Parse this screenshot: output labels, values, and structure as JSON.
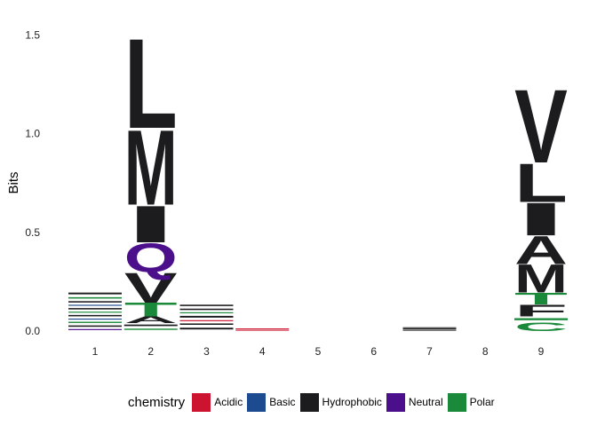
{
  "chart_data": {
    "type": "sequence-logo",
    "ylabel": "Bits",
    "xlabel": "",
    "ylim": [
      0,
      1.6
    ],
    "yticks": [
      "0.0",
      "0.5",
      "1.0",
      "1.5"
    ],
    "ytick_values": [
      0,
      0.5,
      1.0,
      1.5
    ],
    "positions": [
      "1",
      "2",
      "3",
      "4",
      "5",
      "6",
      "7",
      "8",
      "9"
    ],
    "grid": false,
    "legend_placement": "bottom",
    "legend_title": "chemistry",
    "colors": {
      "Acidic": "#cc1430",
      "Basic": "#1c4b8f",
      "Hydrophobic": "#1c1c1e",
      "Neutral": "#4b0f8c",
      "Polar": "#1a8a3a"
    },
    "legend": [
      {
        "label": "Acidic",
        "color": "#cc1430"
      },
      {
        "label": "Basic",
        "color": "#1c4b8f"
      },
      {
        "label": "Hydrophobic",
        "color": "#1c1c1e"
      },
      {
        "label": "Neutral",
        "color": "#4b0f8c"
      },
      {
        "label": "Polar",
        "color": "#1a8a3a"
      }
    ],
    "stacks": [
      {
        "position": 1,
        "letters": [
          {
            "letter": "",
            "chem": "Neutral",
            "bits": 0.015
          },
          {
            "letter": "",
            "chem": "Hydrophobic",
            "bits": 0.02
          },
          {
            "letter": "",
            "chem": "Polar",
            "bits": 0.018
          },
          {
            "letter": "",
            "chem": "Basic",
            "bits": 0.015
          },
          {
            "letter": "",
            "chem": "Hydrophobic",
            "bits": 0.02
          },
          {
            "letter": "",
            "chem": "Polar",
            "bits": 0.015
          },
          {
            "letter": "",
            "chem": "Hydrophobic",
            "bits": 0.02
          },
          {
            "letter": "",
            "chem": "Basic",
            "bits": 0.015
          },
          {
            "letter": "",
            "chem": "Hydrophobic",
            "bits": 0.02
          },
          {
            "letter": "",
            "chem": "Polar",
            "bits": 0.02
          },
          {
            "letter": "",
            "chem": "Hydrophobic",
            "bits": 0.025
          }
        ]
      },
      {
        "position": 2,
        "letters": [
          {
            "letter": "",
            "chem": "Polar",
            "bits": 0.018
          },
          {
            "letter": "",
            "chem": "Hydrophobic",
            "bits": 0.022
          },
          {
            "letter": "A",
            "chem": "Hydrophobic",
            "bits": 0.035
          },
          {
            "letter": "T",
            "chem": "Polar",
            "bits": 0.07
          },
          {
            "letter": "V",
            "chem": "Hydrophobic",
            "bits": 0.155
          },
          {
            "letter": "Q",
            "chem": "Neutral",
            "bits": 0.15
          },
          {
            "letter": "I",
            "chem": "Hydrophobic",
            "bits": 0.19
          },
          {
            "letter": "M",
            "chem": "Hydrophobic",
            "bits": 0.39
          },
          {
            "letter": "L",
            "chem": "Hydrophobic",
            "bits": 0.465
          }
        ]
      },
      {
        "position": 3,
        "letters": [
          {
            "letter": "",
            "chem": "Hydrophobic",
            "bits": 0.025
          },
          {
            "letter": "",
            "chem": "Hydrophobic",
            "bits": 0.02
          },
          {
            "letter": "",
            "chem": "Acidic",
            "bits": 0.015
          },
          {
            "letter": "",
            "chem": "Hydrophobic",
            "bits": 0.025
          },
          {
            "letter": "",
            "chem": "Polar",
            "bits": 0.015
          },
          {
            "letter": "",
            "chem": "Hydrophobic",
            "bits": 0.02
          },
          {
            "letter": "W",
            "chem": "Hydrophobic",
            "bits": 0.02
          }
        ]
      },
      {
        "position": 4,
        "letters": [
          {
            "letter": "",
            "chem": "Acidic",
            "bits": 0.008
          },
          {
            "letter": "",
            "chem": "Acidic",
            "bits": 0.006
          }
        ]
      },
      {
        "position": 5,
        "letters": []
      },
      {
        "position": 6,
        "letters": []
      },
      {
        "position": 7,
        "letters": [
          {
            "letter": "",
            "chem": "Hydrophobic",
            "bits": 0.008
          },
          {
            "letter": "",
            "chem": "Hydrophobic",
            "bits": 0.006
          },
          {
            "letter": "",
            "chem": "Hydrophobic",
            "bits": 0.006
          }
        ]
      },
      {
        "position": 8,
        "letters": []
      },
      {
        "position": 9,
        "letters": [
          {
            "letter": "C",
            "chem": "Polar",
            "bits": 0.045
          },
          {
            "letter": "",
            "chem": "Polar",
            "bits": 0.03
          },
          {
            "letter": "F",
            "chem": "Hydrophobic",
            "bits": 0.06
          },
          {
            "letter": "T",
            "chem": "Polar",
            "bits": 0.06
          },
          {
            "letter": "M",
            "chem": "Hydrophobic",
            "bits": 0.145
          },
          {
            "letter": "A",
            "chem": "Hydrophobic",
            "bits": 0.145
          },
          {
            "letter": "I",
            "chem": "Hydrophobic",
            "bits": 0.17
          },
          {
            "letter": "L",
            "chem": "Hydrophobic",
            "bits": 0.2
          },
          {
            "letter": "V",
            "chem": "Hydrophobic",
            "bits": 0.38
          }
        ]
      }
    ]
  }
}
